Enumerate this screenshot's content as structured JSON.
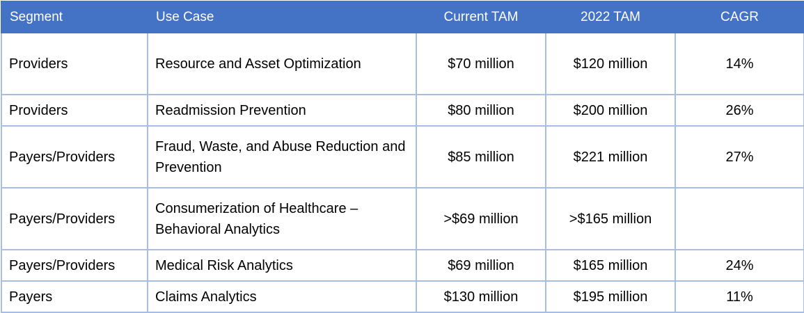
{
  "table": {
    "headers": {
      "segment": "Segment",
      "use_case": "Use Case",
      "current_tam": "Current TAM",
      "tam_2022": "2022 TAM",
      "cagr": "CAGR"
    },
    "rows": [
      {
        "segment": "Providers",
        "use_case": "Resource and Asset Optimization",
        "current_tam": "$70 million",
        "tam_2022": "$120 million",
        "cagr": "14%"
      },
      {
        "segment": "Providers",
        "use_case": "Readmission Prevention",
        "current_tam": "$80 million",
        "tam_2022": "$200 million",
        "cagr": "26%"
      },
      {
        "segment": "Payers/Providers",
        "use_case": "Fraud, Waste, and Abuse Reduction and Prevention",
        "current_tam": "$85 million",
        "tam_2022": "$221 million",
        "cagr": "27%"
      },
      {
        "segment": "Payers/Providers",
        "use_case": "Consumerization of Healthcare – Behavioral Analytics",
        "current_tam": ">$69 million",
        "tam_2022": ">$165 million",
        "cagr": ""
      },
      {
        "segment": "Payers/Providers",
        "use_case": "Medical Risk Analytics",
        "current_tam": "$69 million",
        "tam_2022": "$165 million",
        "cagr": "24%"
      },
      {
        "segment": "Payers",
        "use_case": "Claims Analytics",
        "current_tam": "$130 million",
        "tam_2022": "$195 million",
        "cagr": "11%"
      }
    ]
  },
  "colors": {
    "header_bg": "#4472c4",
    "header_text": "#ffffff",
    "grid_line": "#a8bde3"
  }
}
